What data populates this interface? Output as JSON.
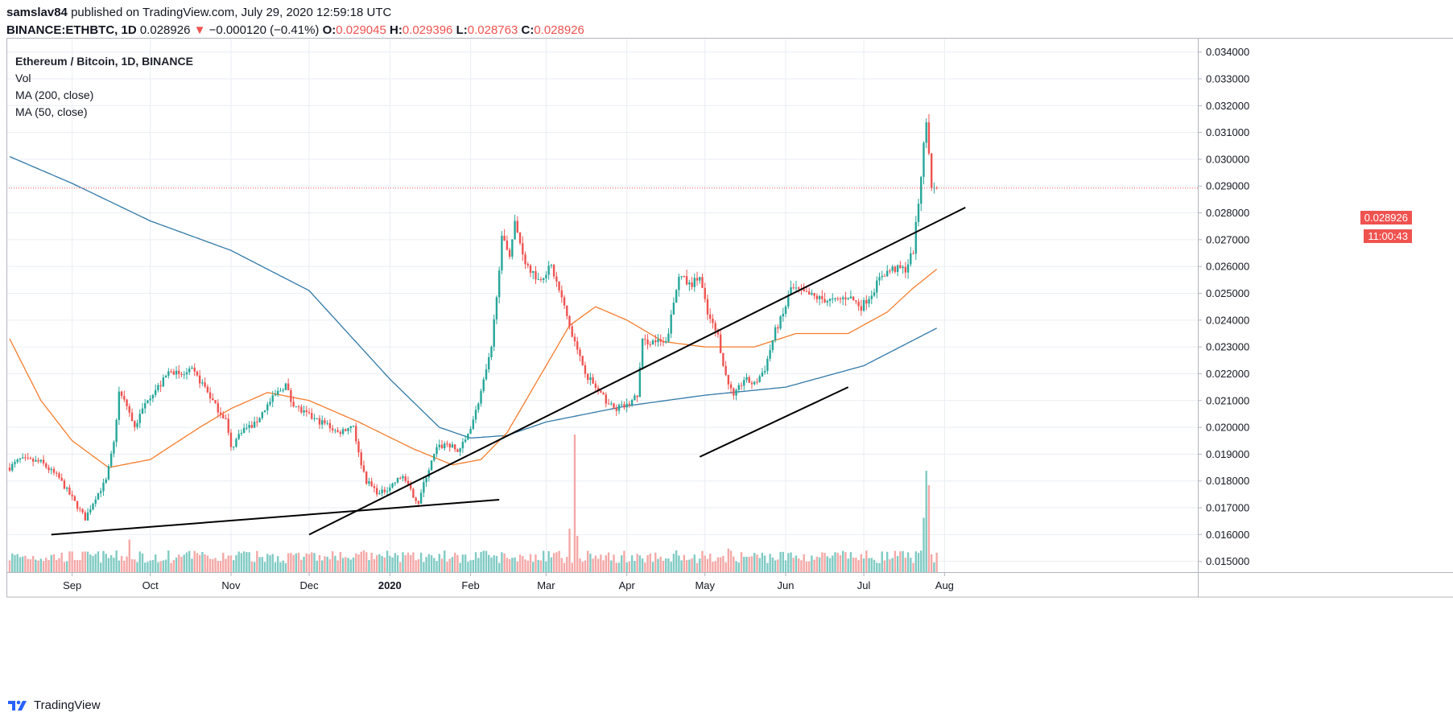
{
  "header": {
    "user": "samslav84",
    "published_text": "published on TradingView.com, July 29, 2020 12:59:18 UTC",
    "symbol": "BINANCE:ETHBTC, 1D",
    "last": "0.028926",
    "down_arrow": "▼",
    "change": "−0.000120 (−0.41%)",
    "o_label": "O:",
    "o_value": "0.029045",
    "h_label": "H:",
    "h_value": "0.029396",
    "l_label": "L:",
    "l_value": "0.028763",
    "c_label": "C:",
    "c_value": "0.028926"
  },
  "legend": {
    "title": "Ethereum / Bitcoin, 1D, BINANCE",
    "vol": "Vol",
    "ma200": "MA (200, close)",
    "ma50": "MA (50, close)"
  },
  "price_tag": {
    "price": "0.028926",
    "countdown": "11:00:43"
  },
  "footer": {
    "brand": "TradingView"
  },
  "colors": {
    "up": "#26a69a",
    "down": "#ef5350",
    "vol_up": "#80cbc4",
    "vol_down": "#f4a9a7",
    "ma200": "#3179a8",
    "ma50": "#f57c2c",
    "grid": "#e9edf3",
    "trend": "#000000"
  },
  "chart_data": {
    "type": "candlestick",
    "title": "Ethereum / Bitcoin, 1D, BINANCE",
    "ylim": [
      0.0146,
      0.0345
    ],
    "y_ticks": [
      "0.015000",
      "0.016000",
      "0.017000",
      "0.018000",
      "0.019000",
      "0.020000",
      "0.021000",
      "0.022000",
      "0.023000",
      "0.024000",
      "0.025000",
      "0.026000",
      "0.027000",
      "0.028000",
      "0.029000",
      "0.030000",
      "0.031000",
      "0.032000",
      "0.033000",
      "0.034000"
    ],
    "x_ticks": [
      {
        "label": "Sep",
        "date": "2019-09-01"
      },
      {
        "label": "Oct",
        "date": "2019-10-01"
      },
      {
        "label": "Nov",
        "date": "2019-11-01"
      },
      {
        "label": "Dec",
        "date": "2019-12-01"
      },
      {
        "label": "2020",
        "date": "2020-01-01"
      },
      {
        "label": "Feb",
        "date": "2020-02-01"
      },
      {
        "label": "Mar",
        "date": "2020-03-01"
      },
      {
        "label": "Apr",
        "date": "2020-04-01"
      },
      {
        "label": "May",
        "date": "2020-05-01"
      },
      {
        "label": "Jun",
        "date": "2020-06-01"
      },
      {
        "label": "Jul",
        "date": "2020-07-01"
      },
      {
        "label": "Aug",
        "date": "2020-08-01"
      }
    ],
    "start_date": "2019-08-08",
    "end_date": "2020-07-29",
    "close_anchors": [
      [
        "2019-08-08",
        0.0185
      ],
      [
        "2019-08-12",
        0.0188
      ],
      [
        "2019-08-20",
        0.0187
      ],
      [
        "2019-08-27",
        0.0181
      ],
      [
        "2019-09-02",
        0.0172
      ],
      [
        "2019-09-06",
        0.0166
      ],
      [
        "2019-09-10",
        0.0174
      ],
      [
        "2019-09-14",
        0.018
      ],
      [
        "2019-09-17",
        0.0194
      ],
      [
        "2019-09-19",
        0.0213
      ],
      [
        "2019-09-22",
        0.0208
      ],
      [
        "2019-09-25",
        0.02
      ],
      [
        "2019-09-30",
        0.0211
      ],
      [
        "2019-10-05",
        0.0216
      ],
      [
        "2019-10-09",
        0.0222
      ],
      [
        "2019-10-12",
        0.0219
      ],
      [
        "2019-10-17",
        0.0221
      ],
      [
        "2019-10-22",
        0.0215
      ],
      [
        "2019-10-26",
        0.0208
      ],
      [
        "2019-10-30",
        0.0203
      ],
      [
        "2019-11-01",
        0.0192
      ],
      [
        "2019-11-05",
        0.0199
      ],
      [
        "2019-11-10",
        0.0201
      ],
      [
        "2019-11-14",
        0.0207
      ],
      [
        "2019-11-18",
        0.0212
      ],
      [
        "2019-11-22",
        0.0216
      ],
      [
        "2019-11-24",
        0.021
      ],
      [
        "2019-11-28",
        0.0206
      ],
      [
        "2019-12-03",
        0.0203
      ],
      [
        "2019-12-08",
        0.0201
      ],
      [
        "2019-12-12",
        0.0198
      ],
      [
        "2019-12-18",
        0.0201
      ],
      [
        "2019-12-20",
        0.019
      ],
      [
        "2019-12-23",
        0.018
      ],
      [
        "2019-12-28",
        0.0175
      ],
      [
        "2020-01-01",
        0.0178
      ],
      [
        "2020-01-06",
        0.0182
      ],
      [
        "2020-01-09",
        0.0176
      ],
      [
        "2020-01-12",
        0.0172
      ],
      [
        "2020-01-15",
        0.0182
      ],
      [
        "2020-01-19",
        0.0192
      ],
      [
        "2020-01-23",
        0.0194
      ],
      [
        "2020-01-27",
        0.0191
      ],
      [
        "2020-01-30",
        0.0195
      ],
      [
        "2020-02-03",
        0.0206
      ],
      [
        "2020-02-06",
        0.0217
      ],
      [
        "2020-02-09",
        0.0229
      ],
      [
        "2020-02-11",
        0.025
      ],
      [
        "2020-02-13",
        0.027
      ],
      [
        "2020-02-16",
        0.0265
      ],
      [
        "2020-02-18",
        0.0276
      ],
      [
        "2020-02-22",
        0.0262
      ],
      [
        "2020-02-27",
        0.0255
      ],
      [
        "2020-03-03",
        0.026
      ],
      [
        "2020-03-07",
        0.0248
      ],
      [
        "2020-03-10",
        0.0238
      ],
      [
        "2020-03-13",
        0.0228
      ],
      [
        "2020-03-17",
        0.0219
      ],
      [
        "2020-03-22",
        0.0212
      ],
      [
        "2020-03-27",
        0.0207
      ],
      [
        "2020-04-01",
        0.0208
      ],
      [
        "2020-04-05",
        0.0212
      ],
      [
        "2020-04-07",
        0.0232
      ],
      [
        "2020-04-12",
        0.0232
      ],
      [
        "2020-04-16",
        0.0231
      ],
      [
        "2020-04-19",
        0.0246
      ],
      [
        "2020-04-21",
        0.0257
      ],
      [
        "2020-04-25",
        0.0253
      ],
      [
        "2020-04-29",
        0.0256
      ],
      [
        "2020-05-02",
        0.0242
      ],
      [
        "2020-05-06",
        0.0234
      ],
      [
        "2020-05-09",
        0.0219
      ],
      [
        "2020-05-12",
        0.0211
      ],
      [
        "2020-05-16",
        0.0218
      ],
      [
        "2020-05-20",
        0.0216
      ],
      [
        "2020-05-24",
        0.0222
      ],
      [
        "2020-05-28",
        0.0236
      ],
      [
        "2020-05-31",
        0.0242
      ],
      [
        "2020-06-03",
        0.0252
      ],
      [
        "2020-06-08",
        0.025
      ],
      [
        "2020-06-14",
        0.0248
      ],
      [
        "2020-06-20",
        0.0247
      ],
      [
        "2020-06-25",
        0.0249
      ],
      [
        "2020-06-30",
        0.0245
      ],
      [
        "2020-07-04",
        0.025
      ],
      [
        "2020-07-08",
        0.0257
      ],
      [
        "2020-07-12",
        0.0259
      ],
      [
        "2020-07-17",
        0.0259
      ],
      [
        "2020-07-20",
        0.0266
      ],
      [
        "2020-07-22",
        0.0284
      ],
      [
        "2020-07-24",
        0.0305
      ],
      [
        "2020-07-25",
        0.0314
      ],
      [
        "2020-07-26",
        0.0303
      ],
      [
        "2020-07-27",
        0.0291
      ],
      [
        "2020-07-28",
        0.029
      ],
      [
        "2020-07-29",
        0.028926
      ]
    ],
    "ma200_anchors": [
      [
        "2019-08-08",
        0.0301
      ],
      [
        "2019-09-01",
        0.0291
      ],
      [
        "2019-10-01",
        0.0277
      ],
      [
        "2019-11-01",
        0.0266
      ],
      [
        "2019-12-01",
        0.0251
      ],
      [
        "2020-01-01",
        0.0218
      ],
      [
        "2020-01-20",
        0.02
      ],
      [
        "2020-02-01",
        0.0196
      ],
      [
        "2020-02-15",
        0.0197
      ],
      [
        "2020-03-01",
        0.0202
      ],
      [
        "2020-04-01",
        0.0208
      ],
      [
        "2020-05-01",
        0.0212
      ],
      [
        "2020-06-01",
        0.0215
      ],
      [
        "2020-07-01",
        0.0223
      ],
      [
        "2020-07-29",
        0.0237
      ]
    ],
    "ma50_anchors": [
      [
        "2019-08-08",
        0.0233
      ],
      [
        "2019-08-20",
        0.021
      ],
      [
        "2019-09-01",
        0.0195
      ],
      [
        "2019-09-15",
        0.0185
      ],
      [
        "2019-10-01",
        0.0188
      ],
      [
        "2019-10-20",
        0.02
      ],
      [
        "2019-11-01",
        0.0207
      ],
      [
        "2019-11-15",
        0.0213
      ],
      [
        "2019-12-01",
        0.021
      ],
      [
        "2019-12-20",
        0.0202
      ],
      [
        "2020-01-10",
        0.0192
      ],
      [
        "2020-01-25",
        0.0186
      ],
      [
        "2020-02-05",
        0.0188
      ],
      [
        "2020-02-15",
        0.0198
      ],
      [
        "2020-03-01",
        0.0223
      ],
      [
        "2020-03-10",
        0.0238
      ],
      [
        "2020-03-20",
        0.0245
      ],
      [
        "2020-04-01",
        0.024
      ],
      [
        "2020-04-15",
        0.0232
      ],
      [
        "2020-05-01",
        0.023
      ],
      [
        "2020-05-20",
        0.023
      ],
      [
        "2020-06-05",
        0.0235
      ],
      [
        "2020-06-25",
        0.0235
      ],
      [
        "2020-07-10",
        0.0243
      ],
      [
        "2020-07-20",
        0.0252
      ],
      [
        "2020-07-29",
        0.0259
      ]
    ],
    "volume_spikes": [
      [
        "2019-09-23",
        0.9
      ],
      [
        "2020-01-06",
        0.55
      ],
      [
        "2020-02-24",
        0.5
      ],
      [
        "2020-03-10",
        1.2
      ],
      [
        "2020-03-12",
        3.8
      ],
      [
        "2020-03-13",
        1.0
      ],
      [
        "2020-04-20",
        0.6
      ],
      [
        "2020-05-10",
        0.65
      ],
      [
        "2020-07-24",
        1.5
      ],
      [
        "2020-07-25",
        2.8
      ],
      [
        "2020-07-26",
        2.4
      ]
    ],
    "trendlines": [
      {
        "from": [
          "2019-08-24",
          0.016
        ],
        "to": [
          "2020-02-12",
          0.0173
        ]
      },
      {
        "from": [
          "2019-12-01",
          0.016
        ],
        "to": [
          "2020-08-09",
          0.0282
        ]
      },
      {
        "from": [
          "2020-04-29",
          0.0189
        ],
        "to": [
          "2020-06-25",
          0.0215
        ]
      }
    ],
    "last_price": 0.028926
  }
}
